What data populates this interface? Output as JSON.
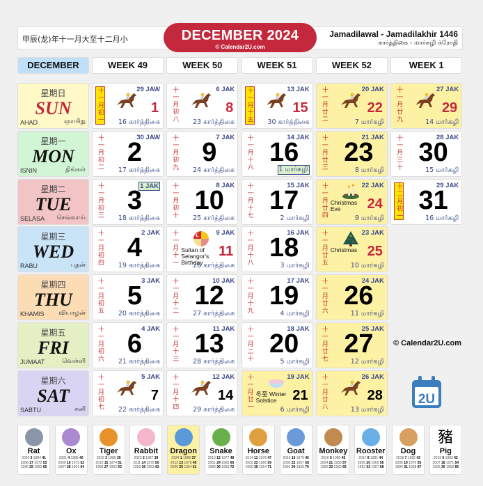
{
  "header": {
    "chinese": "甲辰(龙)年十一月大至十二月小",
    "title": "DECEMBER 2024",
    "site": "© Calendar2U.com",
    "hijri": "Jamadilawal - Jamadilakhir 1446",
    "tamil": "கார்த்திகை - மார்கழி க்ரோதி"
  },
  "week_headers": [
    "DECEMBER",
    "WEEK 49",
    "WEEK 50",
    "WEEK 51",
    "WEEK 52",
    "WEEK 1"
  ],
  "days": [
    {
      "cn": "星期日",
      "en": "SUN",
      "ms": "AHAD",
      "ta": "ஞாயிறு",
      "bg": "#fff9c8",
      "color": "#c4283c"
    },
    {
      "cn": "星期一",
      "en": "MON",
      "ms": "ISNIN",
      "ta": "திங்கள்",
      "bg": "#d2f5d6",
      "color": "#111"
    },
    {
      "cn": "星期二",
      "en": "TUE",
      "ms": "SELASA",
      "ta": "செவ்வாய்",
      "bg": "#f2c4c6",
      "color": "#111"
    },
    {
      "cn": "星期三",
      "en": "WED",
      "ms": "RABU",
      "ta": "புதன்",
      "bg": "#c9e3f7",
      "color": "#111"
    },
    {
      "cn": "星期四",
      "en": "THU",
      "ms": "KHAMIS",
      "ta": "வியாழன்",
      "bg": "#fbdcb4",
      "color": "#111"
    },
    {
      "cn": "星期五",
      "en": "FRI",
      "ms": "JUMAAT",
      "ta": "வெள்ளி",
      "bg": "#e5efc4",
      "color": "#111"
    },
    {
      "cn": "星期六",
      "en": "SAT",
      "ms": "SABTU",
      "ta": "சனி",
      "bg": "#d8d4f2",
      "color": "#111"
    }
  ],
  "weeks": [
    [
      {
        "d": "1",
        "lunar": "十一月初一",
        "lunar_box": true,
        "hijri": "29 JAW",
        "tamil": "16 கார்த்திகை",
        "red": true,
        "icon": "horse-racing-icon"
      },
      {
        "d": "2",
        "lunar": "十一月初二",
        "hijri": "30 JAW",
        "tamil": "17 கார்த்திகை"
      },
      {
        "d": "3",
        "lunar": "十一月初三",
        "hijri": "1 JAK",
        "hijri_box": true,
        "tamil": "18 கார்த்திகை"
      },
      {
        "d": "4",
        "lunar": "十一月初四",
        "hijri": "2 JAK",
        "tamil": "19 கார்த்திகை"
      },
      {
        "d": "5",
        "lunar": "十一月初五",
        "hijri": "3 JAK",
        "tamil": "20 கார்த்திகை"
      },
      {
        "d": "6",
        "lunar": "十一月初六",
        "hijri": "4 JAK",
        "tamil": "21 கார்த்திகை"
      },
      {
        "d": "7",
        "lunar": "十一月初七",
        "hijri": "5 JAK",
        "tamil": "22 கார்த்திகை",
        "icon": "horse-racing-icon"
      }
    ],
    [
      {
        "d": "8",
        "lunar": "十一月初八",
        "hijri": "6 JAK",
        "tamil": "23 கார்த்திகை",
        "red": true,
        "icon": "horse-racing-icon"
      },
      {
        "d": "9",
        "lunar": "十一月初九",
        "hijri": "7 JAK",
        "tamil": "24 கார்த்திகை"
      },
      {
        "d": "10",
        "lunar": "十一月初十",
        "hijri": "8 JAK",
        "tamil": "25 கார்த்திகை"
      },
      {
        "d": "11",
        "lunar": "十一月十一",
        "hijri": "9 JAK",
        "tamil": "26 கார்த்திகை",
        "red": true,
        "icon": "selangor-flag-icon",
        "event": "Sultan of Selangor's Birthday"
      },
      {
        "d": "12",
        "lunar": "十一月十二",
        "hijri": "10 JAK",
        "tamil": "27 கார்த்திகை"
      },
      {
        "d": "13",
        "lunar": "十一月十三",
        "hijri": "11 JAK",
        "tamil": "28 கார்த்திகை"
      },
      {
        "d": "14",
        "lunar": "十一月十四",
        "hijri": "12 JAK",
        "tamil": "29 கார்த்திகை",
        "icon": "horse-racing-icon"
      }
    ],
    [
      {
        "d": "15",
        "lunar": "十一月十五",
        "lunar_box": true,
        "hijri": "13 JAK",
        "tamil": "30 கார்த்திகை",
        "red": true,
        "icon": "horse-racing-icon"
      },
      {
        "d": "16",
        "lunar": "十一月十六",
        "hijri": "14 JAK",
        "tamil": "1 மார்கழி",
        "tamil_box": true
      },
      {
        "d": "17",
        "lunar": "十一月十七",
        "hijri": "15 JAK",
        "tamil": "2 மார்கழி"
      },
      {
        "d": "18",
        "lunar": "十一月十八",
        "hijri": "16 JAK",
        "tamil": "3 மார்கழி"
      },
      {
        "d": "19",
        "lunar": "十一月十九",
        "hijri": "17 JAK",
        "tamil": "4 மார்கழி"
      },
      {
        "d": "20",
        "lunar": "十一月二十",
        "hijri": "18 JAK",
        "tamil": "5 மார்கழி"
      },
      {
        "d": "21",
        "lunar": "十一月廿一",
        "hijri": "19 JAK",
        "tamil": "6 மார்கழி",
        "holiday": true,
        "icon": "tangyuan-bowl-icon",
        "event": "冬至 Winter Solstice"
      }
    ],
    [
      {
        "d": "22",
        "lunar": "十一月廿二",
        "hijri": "20 JAK",
        "tamil": "7 மார்கழி",
        "red": true,
        "holiday": true,
        "icon": "horse-racing-icon"
      },
      {
        "d": "23",
        "lunar": "十一月廿三",
        "hijri": "21 JAK",
        "tamil": "8 மார்கழி",
        "holiday": true
      },
      {
        "d": "24",
        "lunar": "十一月廿四",
        "hijri": "22 JAK",
        "tamil": "9 மார்கழி",
        "red": true,
        "holiday": true,
        "icon": "candles-icon",
        "event": "Christmas Eve"
      },
      {
        "d": "25",
        "lunar": "十一月廿五",
        "hijri": "23 JAK",
        "tamil": "10 மார்கழி",
        "red": true,
        "holiday": true,
        "icon": "christmas-tree-icon",
        "event": "Christmas"
      },
      {
        "d": "26",
        "lunar": "十一月廿六",
        "hijri": "24 JAK",
        "tamil": "11 மார்கழி",
        "holiday": true
      },
      {
        "d": "27",
        "lunar": "十一月廿七",
        "hijri": "25 JAK",
        "tamil": "12 மார்கழி",
        "holiday": true
      },
      {
        "d": "28",
        "lunar": "十一月廿八",
        "hijri": "26 JAK",
        "tamil": "13 மார்கழி",
        "holiday": true,
        "icon": "horse-racing-icon"
      }
    ],
    [
      {
        "d": "29",
        "lunar": "十一月廿九",
        "hijri": "27 JAK",
        "tamil": "14 மார்கழி",
        "red": true,
        "holiday": true,
        "icon": "horse-racing-icon"
      },
      {
        "d": "30",
        "lunar": "十一月三十",
        "hijri": "28 JAK",
        "tamil": "15 மார்கழி"
      },
      {
        "d": "31",
        "lunar": "十二月初一",
        "lunar_box": true,
        "hijri": "29 JAK",
        "tamil": "16 மார்கழி"
      }
    ]
  ],
  "footer": {
    "copyright": "© Calendar2U.com",
    "logo_text": "2U"
  },
  "zodiac": [
    {
      "name": "Rat",
      "color": "#8a96a8",
      "rows": [
        [
          "2020",
          "5",
          "1984",
          "41"
        ],
        [
          "2008",
          "17",
          "1972",
          "53"
        ],
        [
          "1996",
          "29",
          "1960",
          "65"
        ]
      ]
    },
    {
      "name": "Ox",
      "color": "#a98ad0",
      "rows": [
        [
          "2021",
          "4",
          "1985",
          "40"
        ],
        [
          "2009",
          "16",
          "1973",
          "52"
        ],
        [
          "1997",
          "28",
          "1961",
          "64"
        ]
      ]
    },
    {
      "name": "Tiger",
      "color": "#e8902a",
      "rows": [
        [
          "2022",
          "3",
          "1986",
          "39"
        ],
        [
          "2010",
          "15",
          "1974",
          "51"
        ],
        [
          "1998",
          "27",
          "1962",
          "63"
        ]
      ]
    },
    {
      "name": "Rabbit",
      "color": "#f4b6c8",
      "rows": [
        [
          "2023",
          "2",
          "1987",
          "38"
        ],
        [
          "2011",
          "14",
          "1975",
          "50"
        ],
        [
          "1999",
          "26",
          "1963",
          "62"
        ]
      ]
    },
    {
      "name": "Dragon",
      "color": "#5a9ad8",
      "current": true,
      "rows": [
        [
          "2024",
          "1",
          "1988",
          "37"
        ],
        [
          "2012",
          "13",
          "1976",
          "49"
        ],
        [
          "2000",
          "25",
          "1964",
          "61"
        ]
      ]
    },
    {
      "name": "Snake",
      "color": "#6ab04a",
      "rows": [
        [
          "2013",
          "12",
          "1977",
          "48"
        ],
        [
          "2001",
          "24",
          "1965",
          "60"
        ],
        [
          "1989",
          "36",
          "1953",
          "72"
        ]
      ]
    },
    {
      "name": "Horse",
      "color": "#e0a040",
      "rows": [
        [
          "2014",
          "11",
          "1978",
          "47"
        ],
        [
          "2002",
          "23",
          "1966",
          "59"
        ],
        [
          "1990",
          "35",
          "1954",
          "71"
        ]
      ]
    },
    {
      "name": "Goat",
      "color": "#6a9ad8",
      "rows": [
        [
          "2015",
          "10",
          "1979",
          "46"
        ],
        [
          "2003",
          "22",
          "1967",
          "58"
        ],
        [
          "1991",
          "34",
          "1955",
          "70"
        ]
      ]
    },
    {
      "name": "Monkey",
      "color": "#c08a50",
      "rows": [
        [
          "2016",
          "9",
          "1980",
          "45"
        ],
        [
          "2004",
          "21",
          "1968",
          "57"
        ],
        [
          "1992",
          "33",
          "1956",
          "69"
        ]
      ]
    },
    {
      "name": "Rooster",
      "color": "#6ab0e8",
      "rows": [
        [
          "2017",
          "8",
          "1981",
          "44"
        ],
        [
          "2005",
          "20",
          "1969",
          "56"
        ],
        [
          "1993",
          "32",
          "1957",
          "68"
        ]
      ]
    },
    {
      "name": "Dog",
      "color": "#d8a060",
      "rows": [
        [
          "2018",
          "7",
          "1982",
          "43"
        ],
        [
          "2006",
          "19",
          "1970",
          "55"
        ],
        [
          "1994",
          "31",
          "1958",
          "67"
        ]
      ]
    },
    {
      "name": "Pig",
      "glyph": "豬",
      "rows": [
        [
          "2019",
          "6",
          "1983",
          "42"
        ],
        [
          "2007",
          "18",
          "1971",
          "54"
        ],
        [
          "1995",
          "30",
          "1959",
          "66"
        ]
      ]
    }
  ]
}
